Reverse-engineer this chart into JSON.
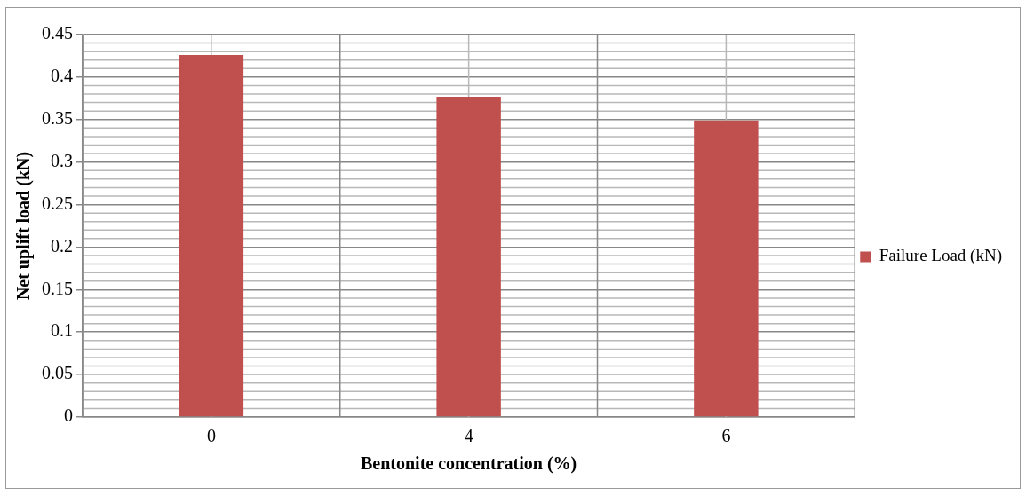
{
  "chart_data": {
    "type": "bar",
    "xlabel": "Bentonite concentration (%)",
    "ylabel": "Net uplift load (kN)",
    "categories": [
      "0",
      "4",
      "6"
    ],
    "series": [
      {
        "name": "Failure Load (kN)",
        "color": "#c0504d",
        "values": [
          0.426,
          0.377,
          0.349
        ]
      }
    ],
    "ylim": [
      0,
      0.45
    ],
    "yticks": [
      0,
      0.05,
      0.1,
      0.15,
      0.2,
      0.25,
      0.3,
      0.35,
      0.4,
      0.45
    ],
    "grid": true,
    "legend": "right"
  }
}
